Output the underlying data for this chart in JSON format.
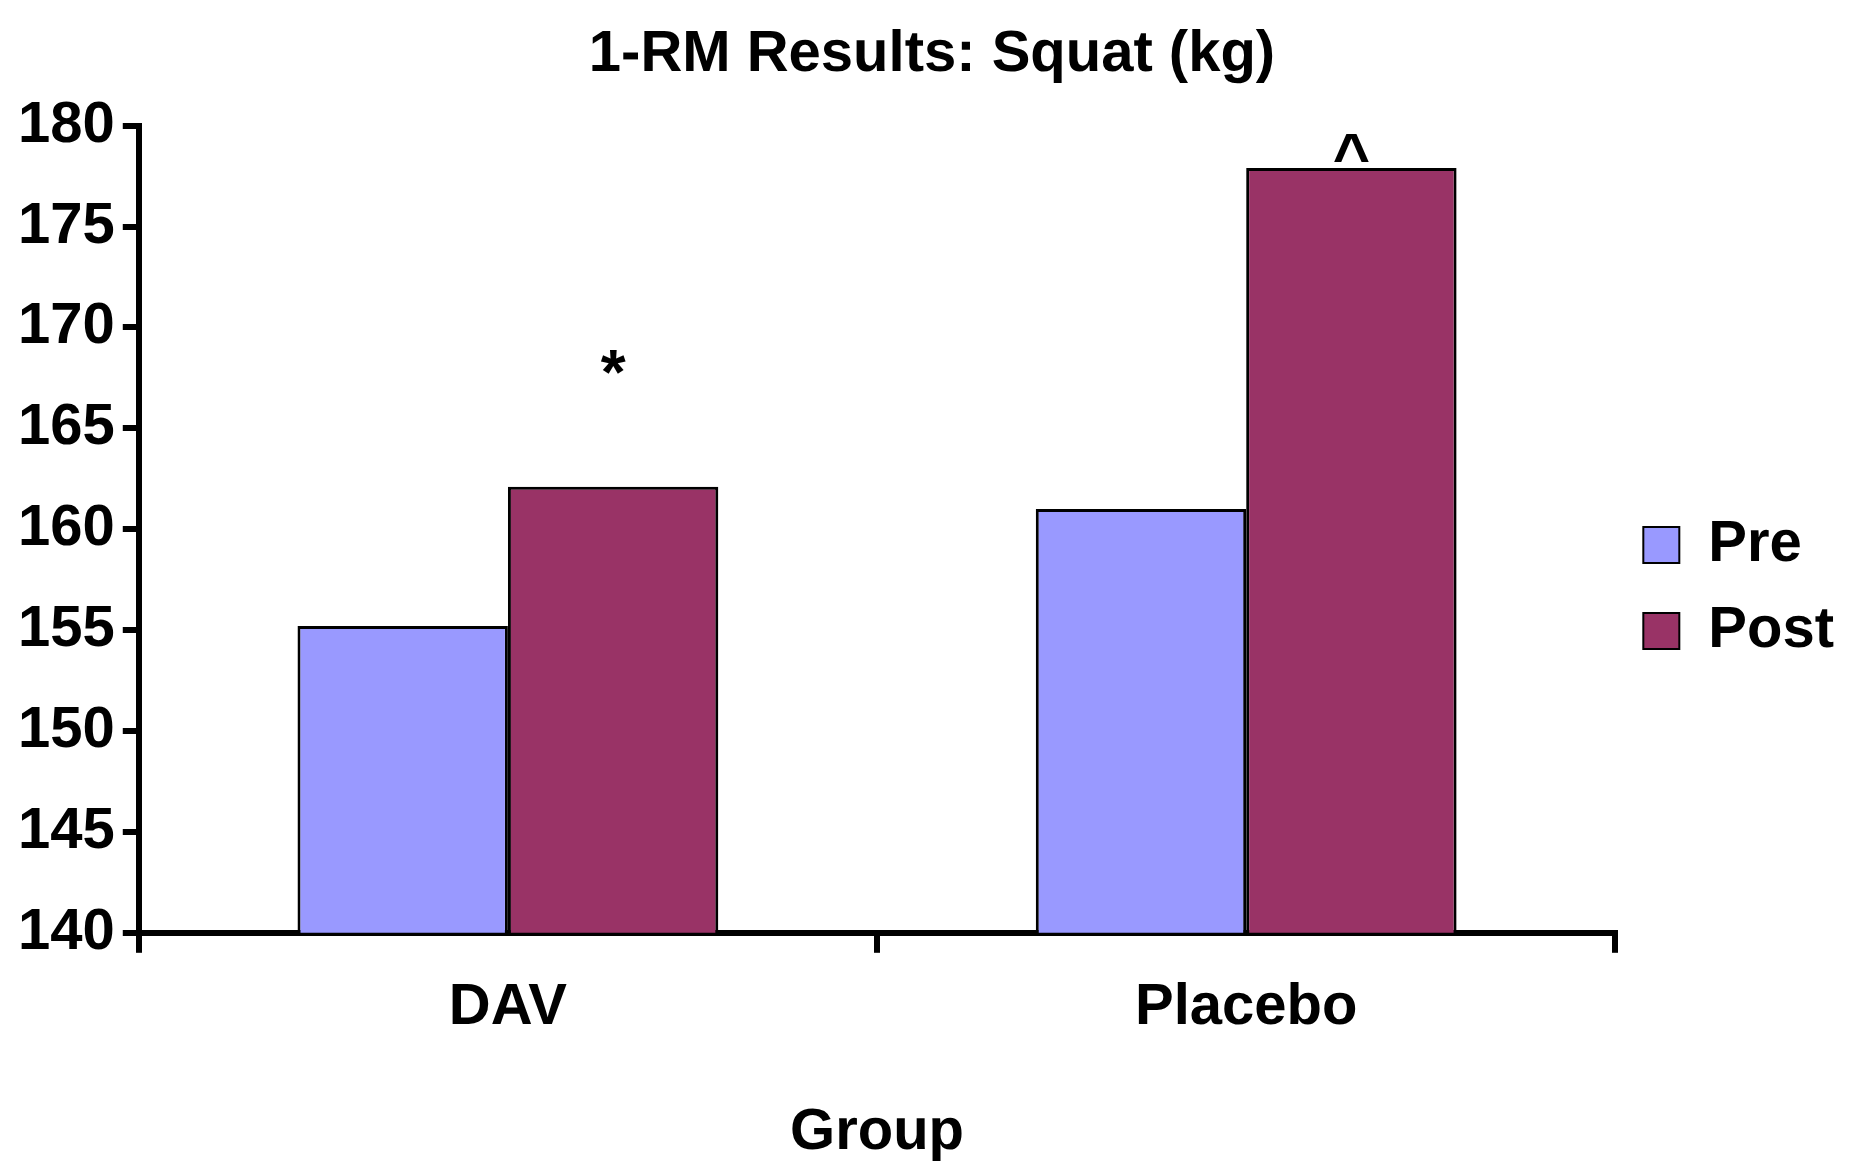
{
  "chart_data": {
    "type": "bar",
    "title": "1-RM Results: Squat (kg)",
    "xlabel": "Group",
    "categories": [
      "DAV",
      "Placebo"
    ],
    "series": [
      {
        "name": "Pre",
        "color": "#9999ff",
        "values": [
          155.2,
          161.0
        ]
      },
      {
        "name": "Post",
        "color": "#993366",
        "values": [
          162.1,
          177.9
        ]
      }
    ],
    "ylim": [
      140,
      180
    ],
    "yticks": [
      140,
      145,
      150,
      155,
      160,
      165,
      170,
      175,
      180
    ],
    "grid": false,
    "legend": "right",
    "annotations": [
      "*",
      "^"
    ]
  }
}
